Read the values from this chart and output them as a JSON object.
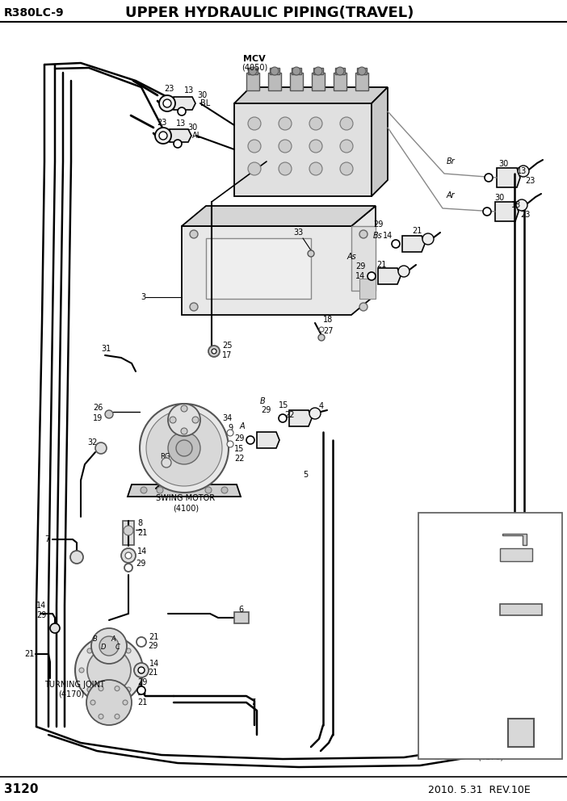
{
  "title": "UPPER HYDRAULIC PIPING(TRAVEL)",
  "model": "R380LC-9",
  "page": "3120",
  "date": "2010. 5.31  REV.10E",
  "bg_color": "#ffffff",
  "line_color": "#000000"
}
